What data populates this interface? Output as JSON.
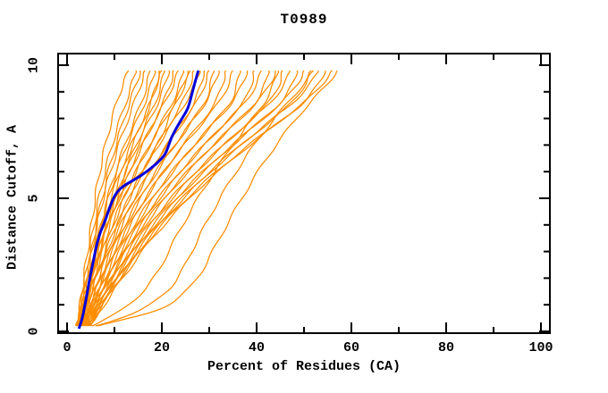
{
  "chart_data": {
    "type": "line",
    "title": "T0989",
    "xlabel": "Percent of Residues (CA)",
    "ylabel": "Distance Cutoff, A",
    "xlim": [
      0,
      100
    ],
    "ylim": [
      0,
      10
    ],
    "grid": false,
    "legend": "none",
    "x_ticks_major": [
      0,
      20,
      40,
      60,
      80,
      100
    ],
    "x_ticks_minor": [
      10,
      30,
      50,
      70,
      90
    ],
    "y_ticks_major": [
      0,
      5,
      10
    ],
    "y_ticks_minor": [
      1,
      2,
      3,
      4,
      6,
      7,
      8,
      9
    ],
    "x_tick_labels": [
      "0",
      "20",
      "40",
      "60",
      "80",
      "100"
    ],
    "y_tick_labels": [
      "0",
      "5",
      "10"
    ],
    "colors": {
      "model_curves": "#ff8c00",
      "highlight_curve": "#0000dd",
      "axis": "#000000",
      "background": "#ffffff"
    },
    "cutoffs": [
      0.2,
      0.8,
      1.5,
      2.2,
      3.0,
      3.8,
      4.6,
      5.4,
      6.2,
      7.0,
      7.8,
      8.6,
      9.3,
      9.8
    ],
    "orange_curves": [
      [
        2.0,
        2.6,
        3.1,
        3.7,
        4.3,
        5.0,
        5.6,
        6.3,
        7.1,
        8.1,
        9.2,
        10.5,
        11.8,
        13.0
      ],
      [
        2.1,
        2.8,
        3.4,
        4.0,
        4.8,
        5.5,
        6.3,
        7.2,
        8.3,
        9.5,
        10.9,
        12.4,
        13.7,
        14.5
      ],
      [
        2.3,
        3.0,
        3.7,
        4.4,
        5.2,
        6.0,
        6.9,
        7.9,
        9.0,
        10.3,
        11.7,
        13.2,
        14.6,
        15.5
      ],
      [
        1.9,
        2.7,
        3.5,
        4.3,
        5.2,
        6.1,
        7.1,
        8.2,
        9.5,
        10.9,
        12.5,
        14.2,
        15.6,
        16.5
      ],
      [
        2.5,
        3.3,
        4.1,
        5.0,
        5.9,
        6.9,
        8.0,
        9.2,
        10.6,
        12.2,
        13.9,
        15.7,
        16.9,
        17.5
      ],
      [
        2.2,
        3.0,
        3.9,
        4.8,
        5.8,
        6.9,
        8.1,
        9.4,
        10.9,
        12.6,
        14.5,
        16.4,
        17.8,
        18.5
      ],
      [
        2.6,
        3.5,
        4.4,
        5.4,
        6.5,
        7.7,
        9.0,
        10.4,
        12.0,
        13.8,
        15.8,
        17.7,
        18.9,
        19.5
      ],
      [
        2.0,
        2.9,
        3.9,
        4.9,
        6.0,
        7.2,
        8.5,
        10.0,
        11.7,
        13.5,
        15.6,
        17.6,
        19.0,
        20.0
      ],
      [
        2.8,
        3.7,
        4.7,
        5.7,
        6.9,
        8.1,
        9.5,
        11.0,
        12.7,
        14.6,
        16.6,
        18.6,
        19.9,
        20.5
      ],
      [
        2.4,
        3.4,
        4.4,
        5.5,
        6.7,
        8.0,
        9.5,
        11.1,
        12.9,
        14.9,
        17.0,
        19.2,
        20.7,
        21.5
      ],
      [
        2.7,
        3.7,
        4.8,
        6.0,
        7.3,
        8.7,
        10.2,
        11.9,
        13.8,
        15.9,
        18.1,
        20.3,
        21.8,
        22.5
      ],
      [
        2.2,
        3.2,
        4.3,
        5.5,
        6.8,
        8.2,
        9.8,
        11.6,
        13.6,
        15.8,
        18.2,
        20.6,
        22.5,
        23.5
      ],
      [
        2.9,
        4.0,
        5.2,
        6.5,
        7.9,
        9.4,
        11.1,
        13.0,
        15.1,
        17.4,
        19.8,
        22.2,
        23.8,
        24.5
      ],
      [
        2.5,
        3.6,
        4.8,
        6.1,
        7.5,
        9.1,
        10.9,
        12.9,
        15.1,
        17.5,
        20.1,
        22.7,
        24.6,
        25.5
      ],
      [
        3.1,
        4.3,
        5.6,
        7.0,
        8.5,
        10.2,
        12.1,
        14.2,
        16.5,
        19.0,
        21.7,
        24.3,
        26.0,
        26.8
      ],
      [
        2.6,
        3.5,
        4.5,
        5.6,
        6.8,
        8.2,
        9.8,
        12.5,
        16.5,
        19.0,
        21.0,
        23.0,
        25.0,
        26.0
      ],
      [
        2.7,
        3.9,
        5.2,
        6.6,
        8.2,
        10.0,
        12.0,
        14.2,
        16.6,
        19.3,
        22.1,
        25.0,
        27.0,
        28.0
      ],
      [
        3.3,
        4.6,
        6.0,
        7.5,
        9.2,
        11.1,
        13.2,
        15.6,
        18.2,
        21.0,
        24.0,
        26.9,
        28.2,
        29.0
      ],
      [
        2.8,
        4.1,
        5.5,
        7.1,
        8.8,
        10.8,
        13.0,
        15.5,
        18.2,
        21.1,
        24.2,
        27.3,
        29.1,
        30.0
      ],
      [
        3.5,
        4.9,
        6.4,
        8.0,
        9.9,
        12.0,
        14.3,
        16.9,
        19.7,
        22.8,
        26.0,
        29.0,
        30.3,
        31.0
      ],
      [
        3.0,
        4.4,
        5.9,
        7.6,
        9.5,
        11.6,
        14.0,
        16.6,
        19.5,
        22.7,
        26.0,
        29.2,
        31.1,
        32.0
      ],
      [
        3.6,
        5.1,
        6.7,
        8.5,
        10.5,
        12.8,
        15.3,
        18.1,
        21.2,
        24.5,
        28.0,
        31.3,
        32.8,
        33.5
      ],
      [
        3.2,
        4.7,
        6.3,
        8.1,
        10.2,
        12.5,
        15.1,
        18.0,
        21.2,
        24.7,
        28.4,
        32.0,
        34.1,
        35.0
      ],
      [
        3.8,
        5.4,
        7.2,
        9.2,
        11.4,
        13.9,
        16.7,
        19.8,
        23.2,
        26.9,
        30.8,
        34.4,
        35.9,
        36.5
      ],
      [
        3.4,
        5.0,
        6.8,
        8.8,
        11.0,
        13.5,
        16.3,
        19.5,
        23.0,
        26.8,
        30.8,
        34.8,
        37.0,
        38.0
      ],
      [
        4.0,
        5.7,
        7.6,
        9.8,
        12.2,
        14.9,
        17.9,
        21.3,
        25.0,
        29.0,
        33.2,
        37.2,
        38.9,
        39.5
      ],
      [
        3.5,
        5.2,
        7.1,
        9.3,
        11.7,
        14.4,
        17.5,
        21.0,
        24.8,
        28.9,
        33.2,
        37.5,
        40.0,
        41.0
      ],
      [
        4.2,
        6.0,
        8.0,
        10.3,
        12.9,
        15.8,
        19.0,
        22.6,
        26.6,
        30.9,
        35.4,
        39.7,
        41.8,
        42.5
      ],
      [
        3.7,
        5.5,
        7.5,
        9.8,
        12.4,
        15.3,
        18.6,
        22.3,
        26.4,
        30.8,
        35.5,
        40.0,
        42.9,
        44.0
      ],
      [
        4.4,
        6.3,
        8.5,
        10.9,
        13.7,
        16.8,
        20.3,
        24.2,
        28.5,
        33.1,
        37.9,
        42.5,
        44.8,
        45.5
      ],
      [
        3.9,
        5.8,
        8.0,
        10.5,
        13.3,
        16.4,
        20.0,
        23.9,
        28.3,
        33.0,
        38.0,
        42.9,
        45.9,
        47.0
      ],
      [
        4.6,
        6.6,
        8.9,
        11.5,
        14.4,
        17.7,
        21.4,
        25.5,
        30.1,
        35.0,
        40.1,
        45.0,
        47.6,
        48.5
      ],
      [
        4.1,
        6.1,
        8.4,
        11.0,
        14.0,
        17.3,
        21.0,
        25.2,
        29.8,
        34.8,
        40.1,
        45.3,
        48.6,
        50.0
      ],
      [
        4.8,
        6.9,
        9.3,
        12.0,
        15.1,
        18.6,
        22.5,
        26.8,
        31.6,
        36.8,
        42.2,
        47.4,
        50.3,
        51.5
      ],
      [
        4.3,
        6.4,
        8.8,
        11.6,
        14.7,
        18.2,
        22.1,
        26.5,
        31.3,
        36.6,
        42.1,
        47.7,
        51.3,
        53.0
      ],
      [
        5.0,
        7.2,
        9.7,
        12.6,
        15.8,
        19.5,
        23.6,
        28.1,
        33.2,
        38.6,
        44.3,
        49.9,
        53.0,
        54.5
      ],
      [
        4.5,
        6.7,
        9.2,
        12.1,
        15.4,
        19.0,
        23.1,
        27.7,
        32.8,
        38.3,
        44.2,
        50.0,
        53.9,
        56.0
      ],
      [
        6.0,
        15.5,
        21.0,
        24.0,
        26.3,
        28.6,
        31.0,
        33.6,
        36.4,
        39.5,
        42.9,
        46.6,
        50.0,
        52.0
      ],
      [
        5.2,
        11.5,
        16.0,
        19.0,
        21.4,
        23.8,
        26.3,
        29.0,
        31.9,
        35.0,
        38.3,
        41.6,
        43.6,
        44.5
      ],
      [
        6.5,
        19.0,
        25.0,
        28.2,
        30.7,
        33.1,
        35.6,
        38.2,
        41.0,
        44.1,
        47.5,
        51.3,
        55.0,
        57.0
      ]
    ],
    "highlight_curve": {
      "cutoffs": [
        0.1,
        0.5,
        1.2,
        1.9,
        2.6,
        3.2,
        3.7,
        4.1,
        4.6,
        5.0,
        5.3,
        5.5,
        5.8,
        6.1,
        6.4,
        6.7,
        7.3,
        7.8,
        8.4,
        9.1,
        9.8
      ],
      "percents": [
        2.5,
        3.2,
        4.0,
        4.7,
        5.5,
        6.2,
        7.0,
        7.9,
        8.9,
        9.8,
        10.9,
        12.3,
        15.1,
        17.5,
        19.4,
        20.8,
        22.1,
        23.6,
        25.5,
        26.6,
        27.7
      ]
    }
  }
}
